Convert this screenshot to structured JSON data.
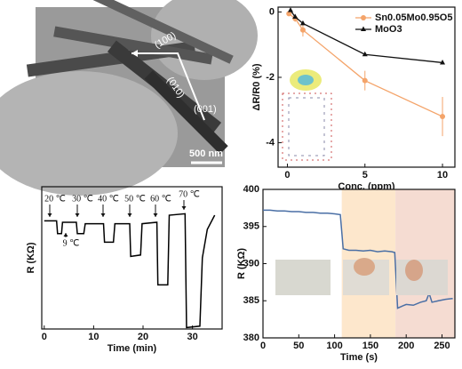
{
  "image_panel": {
    "labels": [
      "(100)",
      "(010)",
      "(001)"
    ],
    "scale_bar": "500 nm"
  },
  "chart_data": [
    {
      "type": "line",
      "x_label": "Conc. (ppm)",
      "y_label": "ΔR/R0 (%)",
      "xlim": [
        -0.6,
        10.8
      ],
      "xticks": [
        0,
        5,
        10
      ],
      "ylim": [
        -4.75,
        0.15
      ],
      "yticks": [
        -4,
        -2,
        0
      ],
      "legend": "upper right",
      "series": [
        {
          "name": "Sn0.05Mo0.95O5",
          "color": "#f4a46a",
          "marker": "circle",
          "x": [
            0.1,
            0.5,
            1,
            5,
            10
          ],
          "values": [
            -0.05,
            -0.2,
            -0.55,
            -2.1,
            -3.2
          ],
          "errors": [
            0.05,
            0.1,
            0.2,
            0.3,
            0.6
          ]
        },
        {
          "name": "MoO3",
          "color": "#111111",
          "marker": "triangle",
          "x": [
            0.2,
            0.5,
            1,
            5,
            10
          ],
          "values": [
            0.05,
            -0.15,
            -0.35,
            -1.3,
            -1.55
          ]
        }
      ]
    },
    {
      "type": "line",
      "x_label": "Time (min)",
      "y_label": "R (KΩ)",
      "xlim": [
        -0.5,
        36
      ],
      "xticks": [
        0,
        10,
        20,
        30
      ],
      "ylim": [
        0,
        100
      ],
      "annotations": [
        "20 ℃",
        "30 ℃",
        "40 ℃",
        "50 ℃",
        "60 ℃",
        "70 ℃",
        "9 ℃"
      ],
      "series": [
        {
          "color": "#000000",
          "x": [
            0,
            2.5,
            2.7,
            3.5,
            3.7,
            6.5,
            6.7,
            8,
            8.3,
            12,
            12.2,
            14,
            14.3,
            17.3,
            17.5,
            19.5,
            19.8,
            22.8,
            23,
            25,
            25.3,
            28.5,
            28.8,
            31.5,
            32,
            33,
            34.5
          ],
          "values": [
            76,
            76,
            67,
            67,
            75,
            75,
            67,
            67,
            74,
            74,
            61,
            61,
            74,
            74,
            51,
            52,
            74,
            75,
            31,
            31,
            80,
            81,
            1,
            2,
            50,
            70,
            80
          ]
        }
      ]
    },
    {
      "type": "line",
      "x_label": "Time (s)",
      "y_label": "R (KΩ)",
      "xlim": [
        0,
        268
      ],
      "xticks": [
        0,
        50,
        100,
        150,
        200,
        250
      ],
      "ylim": [
        380,
        400
      ],
      "yticks": [
        380,
        385,
        390,
        395,
        400
      ],
      "spans": [
        {
          "x": [
            110,
            185
          ],
          "color": "#fde7cc"
        },
        {
          "x": [
            185,
            268
          ],
          "color": "#f5dcd2"
        }
      ],
      "series": [
        {
          "color": "#4a6fa5",
          "x": [
            0,
            10,
            20,
            30,
            40,
            50,
            60,
            70,
            80,
            90,
            100,
            108,
            112,
            120,
            130,
            140,
            150,
            160,
            170,
            180,
            184,
            188,
            195,
            200,
            210,
            220,
            228,
            232,
            236,
            245,
            255,
            265
          ],
          "values": [
            397.2,
            397.2,
            397.1,
            397.1,
            397.0,
            397.0,
            396.9,
            396.9,
            396.8,
            396.8,
            396.7,
            396.6,
            392,
            391.8,
            391.8,
            391.7,
            391.8,
            391.6,
            391.7,
            391.6,
            391.5,
            384,
            384.3,
            384.5,
            384.4,
            384.8,
            385.0,
            386.0,
            384.8,
            385.0,
            385.2,
            385.3
          ]
        }
      ]
    }
  ]
}
